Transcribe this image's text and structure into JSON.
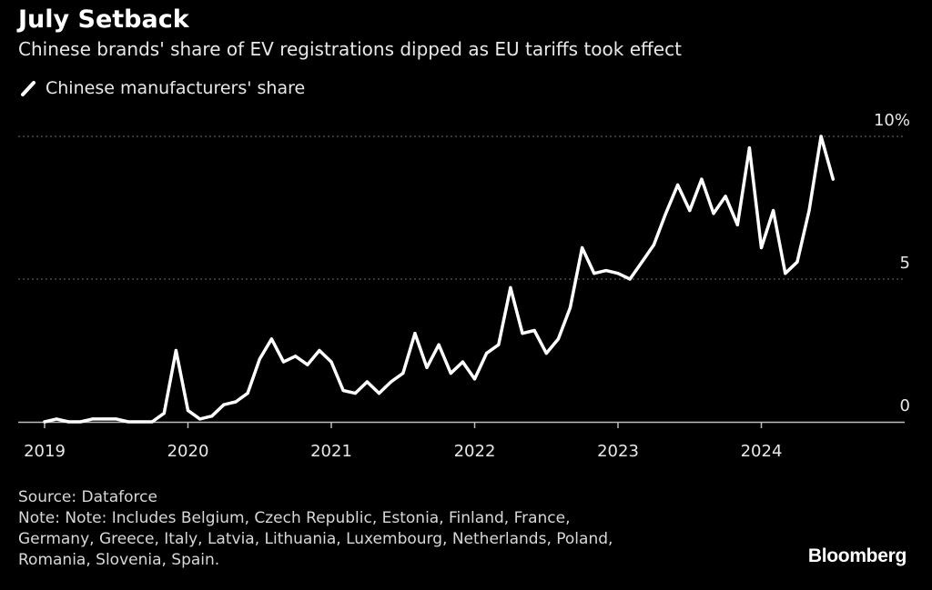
{
  "header": {
    "title": "July Setback",
    "subtitle": "Chinese brands' share of EV registrations dipped as EU tariffs took effect"
  },
  "legend": {
    "label": "Chinese manufacturers' share"
  },
  "footer": {
    "source": "Source: Dataforce",
    "note_lines": [
      "Note: Note: Includes Belgium, Czech Republic, Estonia, Finland, France,",
      "Germany, Greece, Italy, Latvia, Lithuania, Luxembourg, Netherlands, Poland,",
      "Romania, Slovenia, Spain."
    ],
    "brand": "Bloomberg"
  },
  "colors": {
    "background": "#000000",
    "line": "#ffffff",
    "grid": "#6e6e6e",
    "text": "#e8e8e8"
  },
  "chart_data": {
    "type": "line",
    "title": "July Setback",
    "subtitle": "Chinese brands' share of EV registrations dipped as EU tariffs took effect",
    "xlabel": "",
    "ylabel": "",
    "x_unit": "month index (0 = Jan 2019)",
    "xlim": [
      0,
      72
    ],
    "ylim": [
      0,
      10
    ],
    "y_ticks": [
      {
        "value": 0,
        "label": "0"
      },
      {
        "value": 5,
        "label": "5"
      },
      {
        "value": 10,
        "label": "10%"
      }
    ],
    "x_ticks": [
      {
        "value": 0,
        "label": "2019"
      },
      {
        "value": 12,
        "label": "2020"
      },
      {
        "value": 24,
        "label": "2021"
      },
      {
        "value": 36,
        "label": "2022"
      },
      {
        "value": 48,
        "label": "2023"
      },
      {
        "value": 60,
        "label": "2024"
      }
    ],
    "grid": "horizontal dotted",
    "legend_position": "top-left",
    "series": [
      {
        "name": "Chinese manufacturers' share",
        "x": [
          0,
          1,
          2,
          3,
          4,
          5,
          6,
          7,
          8,
          9,
          10,
          11,
          12,
          13,
          14,
          15,
          16,
          17,
          18,
          19,
          20,
          21,
          22,
          23,
          24,
          25,
          26,
          27,
          28,
          29,
          30,
          31,
          32,
          33,
          34,
          35,
          36,
          37,
          38,
          39,
          40,
          41,
          42,
          43,
          44,
          45,
          46,
          47,
          48,
          49,
          50,
          51,
          52,
          53,
          54,
          55,
          56,
          57,
          58,
          59,
          60,
          61,
          62,
          63,
          64,
          65,
          66
        ],
        "values": [
          0.0,
          0.1,
          0.0,
          0.0,
          0.1,
          0.1,
          0.1,
          0.0,
          0.0,
          0.0,
          0.3,
          2.5,
          0.4,
          0.1,
          0.2,
          0.6,
          0.7,
          1.0,
          2.2,
          2.9,
          2.1,
          2.3,
          2.0,
          2.5,
          2.1,
          1.1,
          1.0,
          1.4,
          1.0,
          1.4,
          1.7,
          3.1,
          1.9,
          2.7,
          1.7,
          2.1,
          1.5,
          2.4,
          2.7,
          4.7,
          3.1,
          3.2,
          2.4,
          2.9,
          4.0,
          6.1,
          5.2,
          5.3,
          5.2,
          5.0,
          5.6,
          6.2,
          7.3,
          8.3,
          7.4,
          8.5,
          7.3,
          7.9,
          6.9,
          9.6,
          6.1,
          7.4,
          5.2,
          5.6,
          7.4,
          10.0,
          8.5
        ]
      }
    ]
  }
}
